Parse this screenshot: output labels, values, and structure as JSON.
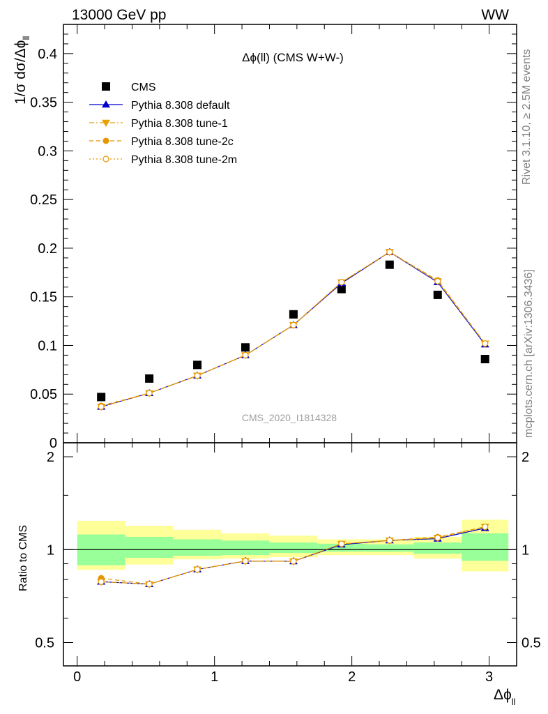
{
  "header": {
    "left": "13000 GeV pp",
    "right": "WW"
  },
  "side": {
    "rivet": "Rivet 3.1.10, ≥ 2.5M events",
    "mcplots": "mcplots.cern.ch [arXiv:1306.3436]"
  },
  "chart_data": {
    "type": "scatter",
    "title": "Δϕ(ll) (CMS W+W-)",
    "watermark": "CMS_2020_I1814328",
    "ylabel_main": "1/σ dσ/Δϕ",
    "ylabel_main_sub": "ll",
    "ylabel_ratio": "Ratio to CMS",
    "xlabel": "Δϕ",
    "xlabel_sub": "ll",
    "xlim": [
      -0.1,
      3.2
    ],
    "ylim_main": [
      0,
      0.43
    ],
    "ylim_ratio": [
      0.42,
      2.22
    ],
    "x_ticks": [
      "0",
      "1",
      "2",
      "3"
    ],
    "y_ticks_main": [
      "0",
      "0.05",
      "0.1",
      "0.15",
      "0.2",
      "0.25",
      "0.3",
      "0.35",
      "0.4"
    ],
    "y_ticks_ratio": [
      "0.5",
      "1",
      "2"
    ],
    "bins": [
      {
        "lo": 0.0,
        "hi": 0.35
      },
      {
        "lo": 0.35,
        "hi": 0.7
      },
      {
        "lo": 0.7,
        "hi": 1.05
      },
      {
        "lo": 1.05,
        "hi": 1.4
      },
      {
        "lo": 1.4,
        "hi": 1.75
      },
      {
        "lo": 1.75,
        "hi": 2.1
      },
      {
        "lo": 2.1,
        "hi": 2.45
      },
      {
        "lo": 2.45,
        "hi": 2.8
      },
      {
        "lo": 2.8,
        "hi": 3.14
      }
    ],
    "x": [
      0.175,
      0.525,
      0.875,
      1.225,
      1.575,
      1.925,
      2.275,
      2.625,
      2.97
    ],
    "band_inner": [
      [
        0.89,
        1.12
      ],
      [
        0.94,
        1.1
      ],
      [
        0.955,
        1.08
      ],
      [
        0.96,
        1.07
      ],
      [
        0.975,
        1.055
      ],
      [
        0.985,
        1.045
      ],
      [
        0.985,
        1.04
      ],
      [
        0.97,
        1.055
      ],
      [
        0.92,
        1.13
      ]
    ],
    "band_outer": [
      [
        0.86,
        1.24
      ],
      [
        0.895,
        1.195
      ],
      [
        0.93,
        1.16
      ],
      [
        0.935,
        1.13
      ],
      [
        0.945,
        1.11
      ],
      [
        0.96,
        1.08
      ],
      [
        0.96,
        1.08
      ],
      [
        0.935,
        1.1
      ],
      [
        0.85,
        1.25
      ]
    ],
    "series": [
      {
        "name": "CMS",
        "color": "#000000",
        "marker": "square",
        "line": "none",
        "values": [
          0.047,
          0.066,
          0.08,
          0.098,
          0.132,
          0.158,
          0.183,
          0.152,
          0.086
        ]
      },
      {
        "name": "Pythia 8.308 default",
        "color": "#0000cc",
        "marker": "triangle-up",
        "line": "solid",
        "values": [
          0.037,
          0.051,
          0.069,
          0.09,
          0.121,
          0.164,
          0.196,
          0.165,
          0.101
        ]
      },
      {
        "name": "Pythia 8.308 tune-1",
        "color": "#e8a000",
        "marker": "triangle-down",
        "line": "dashdot",
        "values": [
          0.037,
          0.051,
          0.069,
          0.09,
          0.121,
          0.165,
          0.196,
          0.166,
          0.102
        ]
      },
      {
        "name": "Pythia 8.308 tune-2c",
        "color": "#e69500",
        "marker": "circle",
        "line": "dashed",
        "values": [
          0.038,
          0.051,
          0.069,
          0.09,
          0.121,
          0.165,
          0.196,
          0.167,
          0.102
        ]
      },
      {
        "name": "Pythia 8.308 tune-2m",
        "color": "#e69500",
        "marker": "circle-open",
        "line": "dotted",
        "values": [
          0.037,
          0.051,
          0.069,
          0.09,
          0.121,
          0.165,
          0.196,
          0.166,
          0.102
        ]
      }
    ]
  }
}
